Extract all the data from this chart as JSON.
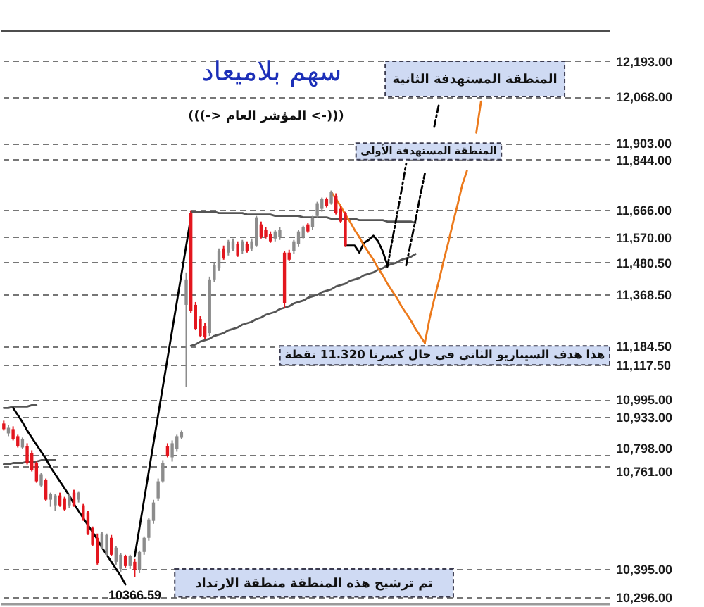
{
  "chart_data": {
    "type": "candlestick",
    "title": "سهم بلاميعاد",
    "subtitle": "(((-> المؤشر العام <-)))",
    "categories": [
      null,
      null,
      null,
      null,
      null,
      null,
      null,
      null,
      null,
      null,
      null,
      null,
      null,
      null,
      null,
      null,
      null,
      null,
      null,
      null,
      null,
      null,
      null,
      null,
      null,
      null,
      null,
      null,
      null,
      null,
      null,
      null,
      null,
      null,
      null,
      null,
      null,
      null,
      null,
      null,
      null,
      null,
      null,
      null,
      null,
      null,
      null,
      null,
      null,
      null,
      null,
      null,
      null,
      null,
      null,
      null,
      null,
      null,
      null,
      null,
      null,
      null,
      null,
      null,
      null,
      null,
      null,
      null,
      null,
      null,
      null,
      null,
      null,
      null,
      null,
      null,
      null,
      null,
      null,
      null,
      null,
      null,
      null,
      null,
      null,
      null,
      null,
      null,
      null,
      null,
      null,
      null,
      null,
      null,
      null,
      null,
      null,
      null,
      null,
      null,
      null,
      null,
      null,
      null,
      null,
      null,
      null,
      null,
      null,
      null,
      null,
      null,
      null,
      null,
      null,
      null,
      null,
      null,
      null,
      null,
      null,
      null,
      null,
      null,
      null,
      null,
      null,
      null,
      null,
      null
    ],
    "ohlc": [
      [
        10910,
        10920,
        10885,
        10890
      ],
      [
        10875,
        10905,
        10865,
        10895
      ],
      [
        10890,
        10900,
        10850,
        10855
      ],
      [
        10865,
        10870,
        10825,
        10830
      ],
      [
        10825,
        10860,
        10820,
        10855
      ],
      [
        10830,
        10840,
        10765,
        10770
      ],
      [
        10805,
        10815,
        10740,
        10745
      ],
      [
        10770,
        10775,
        10700,
        10705
      ],
      [
        10690,
        10735,
        10685,
        10730
      ],
      [
        10710,
        10715,
        10635,
        10640
      ],
      [
        10640,
        10665,
        10615,
        10660
      ],
      [
        10620,
        10660,
        10600,
        10655
      ],
      [
        10655,
        10665,
        10615,
        10620
      ],
      [
        10645,
        10650,
        10600,
        10605
      ],
      [
        10620,
        10660,
        10610,
        10655
      ],
      [
        10665,
        10675,
        10615,
        10620
      ],
      [
        10640,
        10670,
        10630,
        10665
      ],
      [
        10620,
        10625,
        10565,
        10570
      ],
      [
        10595,
        10600,
        10515,
        10520
      ],
      [
        10540,
        10545,
        10475,
        10480
      ],
      [
        10505,
        10520,
        10410,
        10415
      ],
      [
        10470,
        10525,
        10465,
        10520
      ],
      [
        10445,
        10520,
        10440,
        10515
      ],
      [
        10505,
        10515,
        10440,
        10445
      ],
      [
        10420,
        10475,
        10410,
        10470
      ],
      [
        10395,
        10450,
        10385,
        10445
      ],
      [
        10440,
        10445,
        10400,
        10405
      ],
      [
        10405,
        10445,
        10395,
        10440
      ],
      [
        10420,
        10430,
        10366.59,
        10390
      ],
      [
        10390,
        10460,
        10380,
        10455
      ],
      [
        10455,
        10510,
        10445,
        10505
      ],
      [
        10505,
        10575,
        10495,
        10570
      ],
      [
        10565,
        10640,
        10555,
        10630
      ],
      [
        10645,
        10715,
        10635,
        10705
      ],
      [
        10705,
        10780,
        10700,
        10770
      ],
      [
        10830,
        10840,
        10790,
        10795
      ],
      [
        10790,
        10850,
        10775,
        10840
      ],
      [
        10820,
        10870,
        10810,
        10865
      ],
      [
        10860,
        10885,
        10855,
        10880
      ],
      [
        11330,
        11445,
        11040,
        11420
      ],
      [
        11655,
        11665,
        11300,
        11310
      ],
      [
        11330,
        11340,
        11240,
        11245
      ],
      [
        11280,
        11290,
        11215,
        11220
      ],
      [
        11255,
        11265,
        11210,
        11215
      ],
      [
        11230,
        11430,
        11220,
        11420
      ],
      [
        11420,
        11480,
        11410,
        11470
      ],
      [
        11460,
        11530,
        11450,
        11520
      ],
      [
        11530,
        11540,
        11490,
        11495
      ],
      [
        11515,
        11560,
        11505,
        11555
      ],
      [
        11530,
        11565,
        11520,
        11555
      ],
      [
        11545,
        11555,
        11500,
        11505
      ],
      [
        11520,
        11560,
        11510,
        11555
      ],
      [
        11545,
        11555,
        11515,
        11520
      ],
      [
        11530,
        11565,
        11520,
        11555
      ],
      [
        11540,
        11645,
        11535,
        11640
      ],
      [
        11615,
        11625,
        11565,
        11570
      ],
      [
        11595,
        11605,
        11565,
        11570
      ],
      [
        11580,
        11590,
        11550,
        11555
      ],
      [
        11565,
        11595,
        11555,
        11590
      ],
      [
        11570,
        11605,
        11560,
        11595
      ],
      [
        11515,
        11520,
        11320,
        11335
      ],
      [
        11515,
        11525,
        11485,
        11490
      ],
      [
        11520,
        11560,
        11510,
        11555
      ],
      [
        11545,
        11595,
        11535,
        11590
      ],
      [
        11570,
        11610,
        11565,
        11605
      ],
      [
        11615,
        11620,
        11585,
        11590
      ],
      [
        11605,
        11645,
        11595,
        11640
      ],
      [
        11645,
        11695,
        11640,
        11690
      ],
      [
        11670,
        11710,
        11660,
        11705
      ],
      [
        11705,
        11710,
        11675,
        11680
      ],
      [
        11690,
        11735,
        11685,
        11730
      ],
      [
        11715,
        11725,
        11650,
        11655
      ],
      [
        11670,
        11680,
        11620,
        11625
      ],
      [
        11655,
        11660,
        11535,
        11540
      ],
      null,
      null,
      null,
      null,
      null,
      null,
      null,
      null,
      null,
      null,
      null,
      null,
      null,
      null,
      null,
      null,
      null,
      null,
      null,
      null,
      null,
      null,
      null,
      null,
      null,
      null,
      null,
      null,
      null,
      null,
      null,
      null,
      null,
      null,
      null,
      null,
      null,
      null,
      null,
      null,
      null,
      null,
      null,
      null,
      null,
      null,
      null,
      null,
      null,
      null,
      null,
      null,
      null,
      null,
      null,
      null
    ],
    "colors": [
      "#e3161e",
      "#8c8c8c",
      "#e3161e",
      "#e3161e",
      "#8c8c8c",
      "#e3161e",
      "#e3161e",
      "#e3161e",
      "#8c8c8c",
      "#e3161e",
      "#8c8c8c",
      "#8c8c8c",
      "#e3161e",
      "#e3161e",
      "#8c8c8c",
      "#e3161e",
      "#8c8c8c",
      "#e3161e",
      "#e3161e",
      "#e3161e",
      "#e3161e",
      "#8c8c8c",
      "#8c8c8c",
      "#e3161e",
      "#8c8c8c",
      "#8c8c8c",
      "#e3161e",
      "#8c8c8c",
      "#e3161e",
      "#8c8c8c",
      "#8c8c8c",
      "#8c8c8c",
      "#8c8c8c",
      "#8c8c8c",
      "#8c8c8c",
      "#e3161e",
      "#8c8c8c",
      "#8c8c8c",
      "#8c8c8c",
      "#8c8c8c",
      "#e3161e",
      "#e3161e",
      "#e3161e",
      "#e3161e",
      "#8c8c8c",
      "#8c8c8c",
      "#8c8c8c",
      "#e3161e",
      "#8c8c8c",
      "#8c8c8c",
      "#e3161e",
      "#8c8c8c",
      "#e3161e",
      "#8c8c8c",
      "#8c8c8c",
      "#e3161e",
      "#e3161e",
      "#e3161e",
      "#8c8c8c",
      "#8c8c8c",
      "#e3161e",
      "#e3161e",
      "#8c8c8c",
      "#8c8c8c",
      "#8c8c8c",
      "#e3161e",
      "#8c8c8c",
      "#8c8c8c",
      "#8c8c8c",
      "#e3161e",
      "#8c8c8c",
      "#e3161e",
      "#e3161e",
      "#e3161e",
      null,
      null,
      null,
      null,
      null,
      null,
      null,
      null,
      null,
      null,
      null,
      null,
      null,
      null,
      null,
      null,
      null,
      null,
      null,
      null,
      null,
      null,
      null,
      null,
      null,
      null,
      null,
      null,
      null,
      null,
      null,
      null,
      null,
      null,
      null,
      null,
      null,
      null,
      null,
      null,
      null,
      null,
      null,
      null,
      null,
      null,
      null,
      null,
      null,
      null,
      null,
      null,
      null,
      null,
      null,
      null
    ],
    "series": [
      {
        "type": "line",
        "color": "#555555",
        "values": [
          10965,
          10965,
          10970,
          10970,
          10970,
          10970,
          10975,
          10975,
          null,
          null,
          null,
          null,
          null,
          null,
          null,
          null,
          null,
          null,
          null,
          null,
          null,
          null,
          null,
          null,
          null,
          null,
          null,
          null,
          null,
          null,
          null,
          null,
          null,
          null,
          null,
          null,
          null,
          null,
          null,
          null,
          null,
          null,
          null,
          null,
          null,
          null,
          null,
          null,
          null,
          null,
          null,
          null,
          null,
          null,
          null,
          null,
          null,
          null,
          null,
          null,
          null,
          null,
          null,
          null,
          null,
          null,
          null,
          null,
          null,
          null,
          null,
          null,
          null,
          null,
          null,
          null,
          null,
          null,
          null,
          null,
          null,
          null,
          null,
          null,
          null,
          null,
          null,
          null,
          null,
          null,
          null,
          null,
          null,
          null,
          null,
          null,
          null,
          null,
          null,
          null,
          null,
          null,
          null,
          null,
          null,
          null,
          null,
          null,
          null,
          null,
          null,
          null,
          null,
          null,
          null,
          null,
          null,
          null,
          null,
          null,
          null,
          null,
          null,
          null,
          null,
          null,
          null,
          null,
          null,
          null
        ]
      },
      {
        "type": "line",
        "color": "#555555",
        "values": [
          10765,
          10765,
          10770,
          10770,
          10770,
          10775,
          10775,
          10775,
          10780,
          10780,
          10780,
          10780,
          null,
          null,
          null,
          null,
          null,
          null,
          null,
          null,
          null,
          null,
          null,
          null,
          null,
          null,
          null,
          null,
          null,
          null,
          null,
          null,
          null,
          null,
          null,
          null,
          null,
          null,
          null,
          null,
          null,
          null,
          null,
          null,
          null,
          null,
          null,
          null,
          null,
          null,
          null,
          null,
          null,
          null,
          null,
          null,
          null,
          null,
          null,
          null,
          null,
          null,
          null,
          null,
          null,
          null,
          null,
          null,
          null,
          null,
          null,
          null,
          null,
          null,
          null,
          null,
          null,
          null,
          null,
          null,
          null,
          null,
          null,
          null,
          null,
          null,
          null,
          null,
          null,
          null,
          null,
          null,
          null,
          null,
          null,
          null,
          null,
          null,
          null,
          null,
          null,
          null,
          null,
          null,
          null,
          null,
          null,
          null,
          null,
          null,
          null,
          null,
          null,
          null,
          null,
          null,
          null,
          null,
          null,
          null,
          null,
          null,
          null,
          null,
          null,
          null,
          null,
          null,
          null,
          null
        ]
      },
      {
        "type": "line",
        "color": "#000000",
        "values": [
          null,
          null,
          10965,
          10940,
          10915,
          10885,
          10860,
          10835,
          10810,
          10785,
          10755,
          10730,
          10705,
          10680,
          10655,
          10625,
          10600,
          10575,
          10550,
          10525,
          10500,
          10470,
          10445,
          10420,
          10395,
          10370,
          10340,
          null,
          null,
          null,
          null,
          null,
          null,
          null,
          null,
          null,
          null,
          null,
          null,
          null,
          null,
          null,
          null,
          null,
          null,
          null,
          null,
          null,
          null,
          null,
          null,
          null,
          null,
          null,
          null,
          null,
          null,
          null,
          null,
          null,
          null,
          null,
          null,
          null,
          null,
          null,
          null,
          null,
          null,
          null,
          null,
          null,
          null,
          null,
          null,
          null,
          null,
          null,
          null,
          null,
          null,
          null,
          null,
          null,
          null,
          null,
          null,
          null,
          null,
          null,
          null,
          null,
          null,
          null,
          null,
          null,
          null,
          null,
          null,
          null,
          null,
          null,
          null,
          null,
          null,
          null,
          null,
          null,
          null,
          null,
          null,
          null,
          null,
          null,
          null,
          null,
          null,
          null,
          null,
          null,
          null,
          null,
          null,
          null,
          null,
          null,
          null,
          null,
          null,
          null
        ]
      },
      {
        "type": "line",
        "color": "#000000",
        "values": [
          null,
          null,
          null,
          null,
          null,
          null,
          null,
          null,
          null,
          null,
          null,
          null,
          null,
          null,
          null,
          null,
          null,
          null,
          null,
          null,
          null,
          null,
          null,
          null,
          null,
          null,
          null,
          null,
          10440,
          10540,
          10640,
          10740,
          10840,
          10940,
          11040,
          11140,
          11240,
          11340,
          11440,
          11540,
          11640,
          null,
          null,
          null,
          null,
          null,
          null,
          null,
          null,
          null,
          null,
          null,
          null,
          null,
          null,
          null,
          null,
          null,
          null,
          null,
          null,
          null,
          null,
          null,
          null,
          null,
          null,
          null,
          null,
          null,
          null,
          null,
          null,
          null,
          null,
          null,
          null,
          null,
          null,
          null,
          null,
          null,
          null,
          null,
          null,
          null,
          null,
          null,
          null,
          null,
          null,
          null,
          null,
          null,
          null,
          null,
          null,
          null,
          null,
          null,
          null,
          null,
          null,
          null,
          null,
          null,
          null,
          null,
          null,
          null,
          null,
          null,
          null,
          null,
          null,
          null,
          null,
          null,
          null,
          null,
          null,
          null,
          null,
          null,
          null,
          null,
          null,
          null,
          null,
          null
        ]
      },
      {
        "type": "line",
        "color": "#555555",
        "values": [
          null,
          null,
          null,
          null,
          null,
          null,
          null,
          null,
          null,
          null,
          null,
          null,
          null,
          null,
          null,
          null,
          null,
          null,
          null,
          null,
          null,
          null,
          null,
          null,
          null,
          null,
          null,
          null,
          null,
          null,
          null,
          null,
          null,
          null,
          null,
          null,
          null,
          null,
          null,
          null,
          11660,
          11660,
          11660,
          11660,
          11660,
          11660,
          11655,
          11655,
          11655,
          11655,
          11655,
          11655,
          11650,
          11650,
          11650,
          11650,
          11650,
          11650,
          11645,
          11645,
          11645,
          11645,
          11645,
          11645,
          11640,
          11640,
          11640,
          11640,
          11640,
          11640,
          11635,
          11635,
          11635,
          11635,
          11635,
          11635,
          11630,
          11630,
          11630,
          11630,
          11630,
          11630,
          11625,
          11625,
          11625,
          11625,
          11625,
          11625,
          11620,
          null,
          null,
          null,
          null,
          null,
          null,
          null,
          null,
          null,
          null,
          null,
          null,
          null,
          null,
          null,
          null,
          null,
          null,
          null,
          null,
          null,
          null,
          null,
          null,
          null,
          null,
          null,
          null,
          null,
          null,
          null,
          null,
          null,
          null,
          null,
          null,
          null,
          null,
          null,
          null,
          null
        ]
      },
      {
        "type": "line",
        "color": "#555555",
        "values": [
          null,
          null,
          null,
          null,
          null,
          null,
          null,
          null,
          null,
          null,
          null,
          null,
          null,
          null,
          null,
          null,
          null,
          null,
          null,
          null,
          null,
          null,
          null,
          null,
          null,
          null,
          null,
          null,
          null,
          null,
          null,
          null,
          null,
          null,
          null,
          null,
          null,
          null,
          null,
          null,
          11185,
          11190,
          11200,
          11205,
          11210,
          11220,
          11225,
          11230,
          11240,
          11245,
          11250,
          11260,
          11265,
          11270,
          11280,
          11285,
          11295,
          11300,
          11305,
          11315,
          11320,
          11325,
          11335,
          11340,
          11345,
          11355,
          11360,
          11365,
          11375,
          11380,
          11385,
          11395,
          11400,
          11405,
          11415,
          11420,
          11425,
          11435,
          11440,
          11445,
          11455,
          11460,
          11470,
          11475,
          11480,
          11490,
          11495,
          11500,
          11510,
          null,
          null,
          null,
          null,
          null,
          null,
          null,
          null,
          null,
          null,
          null,
          null,
          null,
          null,
          null,
          null,
          null,
          null,
          null,
          null,
          null,
          null,
          null,
          null,
          null,
          null,
          null,
          null,
          null,
          null,
          null,
          null,
          null,
          null,
          null,
          null,
          null,
          null,
          null,
          null,
          null
        ]
      },
      {
        "type": "line",
        "color": "#000000",
        "values": [
          null,
          null,
          null,
          null,
          null,
          null,
          null,
          null,
          null,
          null,
          null,
          null,
          null,
          null,
          null,
          null,
          null,
          null,
          null,
          null,
          null,
          null,
          null,
          null,
          null,
          null,
          null,
          null,
          null,
          null,
          null,
          null,
          null,
          null,
          null,
          null,
          null,
          null,
          null,
          null,
          null,
          null,
          null,
          null,
          null,
          null,
          null,
          null,
          null,
          null,
          null,
          null,
          null,
          null,
          null,
          null,
          null,
          null,
          null,
          null,
          null,
          null,
          null,
          null,
          null,
          null,
          null,
          null,
          null,
          null,
          null,
          null,
          null,
          11540,
          11540,
          11540,
          11515,
          11550,
          11560,
          11575,
          11555,
          11520,
          11470,
          null,
          null,
          null,
          null,
          null,
          null,
          null,
          null,
          null,
          null,
          null,
          null,
          null,
          null,
          null,
          null,
          null,
          null,
          null,
          null,
          null,
          null,
          null,
          null,
          null,
          null,
          null,
          null,
          null,
          null,
          null,
          null,
          null,
          null,
          null,
          null,
          null,
          null,
          null,
          null,
          null,
          null,
          null,
          null,
          null,
          null,
          null
        ]
      },
      {
        "type": "line",
        "color": "#000000",
        "line_style": "dashed",
        "values": [
          null,
          null,
          null,
          null,
          null,
          null,
          null,
          null,
          null,
          null,
          null,
          null,
          null,
          null,
          null,
          null,
          null,
          null,
          null,
          null,
          null,
          null,
          null,
          null,
          null,
          null,
          null,
          null,
          null,
          null,
          null,
          null,
          null,
          null,
          null,
          null,
          null,
          null,
          null,
          null,
          null,
          null,
          null,
          null,
          null,
          null,
          null,
          null,
          null,
          null,
          null,
          null,
          null,
          null,
          null,
          null,
          null,
          null,
          null,
          null,
          null,
          null,
          null,
          null,
          null,
          null,
          null,
          null,
          null,
          null,
          null,
          null,
          null,
          null,
          null,
          null,
          null,
          null,
          null,
          null,
          null,
          null,
          11465,
          11555,
          11645,
          11735,
          11830,
          null,
          null,
          null,
          null,
          null,
          null,
          null,
          null,
          null,
          null,
          null,
          null,
          null,
          null,
          null,
          null,
          null,
          null,
          null,
          null,
          null,
          null,
          null,
          null,
          null,
          null,
          null,
          null,
          null,
          null,
          null,
          null,
          null,
          null,
          null,
          null,
          null,
          null,
          null,
          null,
          null,
          null,
          null
        ]
      },
      {
        "type": "line",
        "color": "#000000",
        "line_style": "dashed",
        "values": [
          null,
          null,
          null,
          null,
          null,
          null,
          null,
          null,
          null,
          null,
          null,
          null,
          null,
          null,
          null,
          null,
          null,
          null,
          null,
          null,
          null,
          null,
          null,
          null,
          null,
          null,
          null,
          null,
          null,
          null,
          null,
          null,
          null,
          null,
          null,
          null,
          null,
          null,
          null,
          null,
          null,
          null,
          null,
          null,
          null,
          null,
          null,
          null,
          null,
          null,
          null,
          null,
          null,
          null,
          null,
          null,
          null,
          null,
          null,
          null,
          null,
          null,
          null,
          null,
          null,
          null,
          null,
          null,
          null,
          null,
          null,
          null,
          null,
          null,
          null,
          null,
          null,
          null,
          null,
          null,
          null,
          null,
          null,
          null,
          null,
          null,
          11470,
          11550,
          11630,
          11715,
          11795,
          null,
          11960,
          12040,
          null,
          null,
          null,
          null,
          null,
          null,
          null,
          null,
          null,
          null,
          null,
          null,
          null,
          null,
          null,
          null,
          null,
          null,
          null,
          null,
          null,
          null,
          null,
          null,
          null,
          null,
          null,
          null,
          null,
          null,
          null,
          null,
          null,
          null,
          null,
          null
        ]
      },
      {
        "type": "line",
        "color": "#ec7a1c",
        "values": [
          null,
          null,
          null,
          null,
          null,
          null,
          null,
          null,
          null,
          null,
          null,
          null,
          null,
          null,
          null,
          null,
          null,
          null,
          null,
          null,
          null,
          null,
          null,
          null,
          null,
          null,
          null,
          null,
          null,
          null,
          null,
          null,
          null,
          null,
          null,
          null,
          null,
          null,
          null,
          null,
          null,
          null,
          null,
          null,
          null,
          null,
          null,
          null,
          null,
          null,
          null,
          null,
          null,
          null,
          null,
          null,
          null,
          null,
          null,
          null,
          null,
          null,
          null,
          null,
          null,
          null,
          null,
          null,
          null,
          null,
          11730,
          11705,
          11680,
          11650,
          11625,
          11595,
          11570,
          11540,
          11515,
          11490,
          11460,
          11435,
          11405,
          11380,
          11355,
          11325,
          11300,
          11275,
          11245,
          11220,
          11195,
          null,
          null,
          null,
          null,
          null,
          null,
          null,
          null,
          null,
          null,
          null,
          null,
          null,
          null,
          null,
          null,
          null,
          null,
          null,
          null,
          null,
          null,
          null,
          null,
          null,
          null,
          null,
          null,
          null,
          null,
          null,
          null,
          null,
          null,
          null,
          null,
          null,
          null,
          null
        ]
      },
      {
        "type": "line",
        "color": "#ec7a1c",
        "values": [
          null,
          null,
          null,
          null,
          null,
          null,
          null,
          null,
          null,
          null,
          null,
          null,
          null,
          null,
          null,
          null,
          null,
          null,
          null,
          null,
          null,
          null,
          null,
          null,
          null,
          null,
          null,
          null,
          null,
          null,
          null,
          null,
          null,
          null,
          null,
          null,
          null,
          null,
          null,
          null,
          null,
          null,
          null,
          null,
          null,
          null,
          null,
          null,
          null,
          null,
          null,
          null,
          null,
          null,
          null,
          null,
          null,
          null,
          null,
          null,
          null,
          null,
          null,
          null,
          null,
          null,
          null,
          null,
          null,
          null,
          null,
          null,
          null,
          null,
          null,
          null,
          null,
          null,
          null,
          null,
          null,
          null,
          null,
          null,
          null,
          null,
          null,
          null,
          null,
          null,
          11195,
          11280,
          11350,
          11415,
          11485,
          11550,
          11620,
          11685,
          11755,
          11805,
          null,
          11940,
          12050,
          null,
          null,
          null,
          null,
          null,
          null,
          null,
          null,
          null,
          null,
          null,
          null,
          null,
          null,
          null,
          null,
          null,
          null,
          null,
          null,
          null,
          null,
          null,
          null,
          null,
          null,
          null
        ]
      }
    ],
    "ylim": [
      10270,
      12300
    ],
    "yticks": [
      {
        "value": 12193,
        "label": "12,193.00"
      },
      {
        "value": 12068,
        "label": "12,068.00"
      },
      {
        "value": 11903,
        "label": "11,903.00"
      },
      {
        "value": 11844,
        "label": "11,844.00"
      },
      {
        "value": 11666,
        "label": "11,666.00"
      },
      {
        "value": 11570,
        "label": "11,570.00"
      },
      {
        "value": 11480.5,
        "label": "11,480.50"
      },
      {
        "value": 11368.5,
        "label": "11,368.50"
      },
      {
        "value": 11184.5,
        "label": "11,184.50"
      },
      {
        "value": 11117.5,
        "label": "11,117.50"
      },
      {
        "value": 10995,
        "label": "10,995.00"
      },
      {
        "value": 10933,
        "label": "10,933.00"
      },
      {
        "value": 10798,
        "label": "10,798.00"
      },
      {
        "value": 10761,
        "label": "10,761.00"
      },
      {
        "value": 10395,
        "label": "10,395.00"
      },
      {
        "value": 10296,
        "label": "10,296.00"
      }
    ],
    "grid": "y",
    "tick_labels": "y",
    "bands": [
      {
        "axis": "y",
        "from": 12068,
        "to": 12193,
        "label": "المنطقة المستهدفة الثانية",
        "color": "#cfdaf3"
      },
      {
        "axis": "y",
        "from": 11844,
        "to": 11903,
        "label": "المنطقة المستهدفة الأولى",
        "color": "#cfdaf3"
      },
      {
        "axis": "y",
        "from": 11117.5,
        "to": 11184.5,
        "label": "هذا هدف السيناريو الثاني في حال كسرنا 11.320 نقطة",
        "color": "#cfdaf3"
      },
      {
        "axis": "y",
        "from": 10296,
        "to": 10395,
        "label": "تم ترشيح هذه المنطقة منطقة الارتداد",
        "color": "#cfdaf3"
      }
    ],
    "annotations": [
      {
        "text": "10366.59",
        "y": 10366.59
      }
    ]
  }
}
